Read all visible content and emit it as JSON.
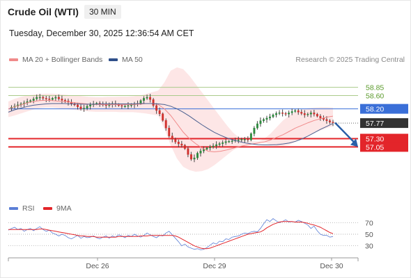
{
  "header": {
    "title": "Crude Oil (WTI)",
    "timeframe": "30 MIN",
    "datetime": "Tuesday, December 30, 2025 12:36:54 AM CET"
  },
  "legend": {
    "ma20_label": "MA 20 + Bollinger Bands",
    "ma50_label": "MA 50",
    "credit": "Research © 2025 Trading Central"
  },
  "rsi_legend": {
    "rsi_label": "RSI",
    "ma_label": "9MA"
  },
  "colors": {
    "up": "#2e8b3e",
    "down": "#d0312d",
    "ma20": "#f08a8a",
    "ma50": "#4a5f8f",
    "bollinger_fill": "#fde3e3",
    "resistance_line": "#aacb8a",
    "resistance_text": "#5a9a2a",
    "pivot": "#3a6fd8",
    "support": "#e3252a",
    "current": "#333333",
    "rsi": "#5b7fd6",
    "rsi_ma": "#e3252a",
    "arrow": "#2a5fa8"
  },
  "chart_data": [
    {
      "type": "candlestick",
      "x_ticks": [
        "Dec 26",
        "Dec 29",
        "Dec 30"
      ],
      "ylim": [
        55.82,
        59.22
      ],
      "levels": [
        {
          "value": 58.85,
          "label": "58.85",
          "kind": "resistance"
        },
        {
          "value": 58.6,
          "label": "58.60",
          "kind": "resistance"
        },
        {
          "value": 58.2,
          "label": "58.20",
          "kind": "pivot"
        },
        {
          "value": 57.77,
          "label": "57.77",
          "kind": "current"
        },
        {
          "value": 57.3,
          "label": "57.30",
          "kind": "support"
        },
        {
          "value": 57.05,
          "label": "57.05",
          "kind": "support"
        }
      ],
      "projection": {
        "from": 57.78,
        "to": 57.05
      },
      "price_path": [
        58.22,
        58.25,
        58.28,
        58.32,
        58.35,
        58.38,
        58.42,
        58.45,
        58.5,
        58.55,
        58.55,
        58.52,
        58.5,
        58.48,
        58.52,
        58.55,
        58.5,
        58.46,
        58.44,
        58.4,
        58.36,
        58.32,
        58.26,
        58.2,
        58.22,
        58.28,
        58.32,
        58.35,
        58.37,
        58.34,
        58.32,
        58.3,
        58.34,
        58.36,
        58.33,
        58.3,
        58.28,
        58.28,
        58.3,
        58.32,
        58.34,
        58.36,
        58.45,
        58.52,
        58.55,
        58.48,
        58.3,
        58.15,
        58.05,
        57.85,
        57.62,
        57.38,
        57.28,
        57.2,
        57.14,
        57.1,
        57.0,
        56.82,
        56.68,
        56.72,
        56.86,
        56.93,
        56.98,
        57.02,
        57.05,
        57.08,
        57.12,
        57.15,
        57.18,
        57.21,
        57.22,
        57.23,
        57.25,
        57.26,
        57.28,
        57.28,
        57.26,
        57.45,
        57.62,
        57.75,
        57.84,
        57.88,
        57.92,
        57.96,
        58.02,
        58.06,
        58.08,
        58.06,
        58.04,
        58.08,
        58.12,
        58.15,
        58.1,
        58.06,
        58.02,
        58.04,
        58.08,
        58.04,
        57.98,
        57.92,
        57.88,
        57.84,
        57.8,
        57.78
      ],
      "ma20": [
        58.2,
        58.26,
        58.32,
        58.38,
        58.42,
        58.45,
        58.46,
        58.45,
        58.43,
        58.42,
        58.4,
        58.38,
        58.36,
        58.34,
        58.33,
        58.33,
        58.33,
        58.33,
        58.33,
        58.33,
        58.33,
        58.34,
        58.36,
        58.36,
        58.33,
        58.2,
        58.0,
        57.75,
        57.5,
        57.3,
        57.15,
        57.02,
        56.92,
        56.9,
        56.92,
        56.96,
        57.01,
        57.06,
        57.1,
        57.14,
        57.17,
        57.2,
        57.26,
        57.34,
        57.42,
        57.52,
        57.62,
        57.7,
        57.78,
        57.85,
        57.9,
        57.95,
        57.98
      ],
      "ma50": [
        58.1,
        58.17,
        58.22,
        58.27,
        58.31,
        58.33,
        58.35,
        58.36,
        58.36,
        58.36,
        58.35,
        58.35,
        58.34,
        58.34,
        58.34,
        58.35,
        58.35,
        58.35,
        58.35,
        58.35,
        58.35,
        58.36,
        58.36,
        58.36,
        58.35,
        58.33,
        58.28,
        58.2,
        58.1,
        57.98,
        57.85,
        57.72,
        57.6,
        57.49,
        57.4,
        57.32,
        57.26,
        57.21,
        57.17,
        57.14,
        57.12,
        57.11,
        57.11,
        57.12,
        57.14,
        57.17,
        57.22,
        57.29,
        57.38,
        57.48,
        57.58,
        57.67,
        57.76
      ],
      "bollinger_upper": [
        58.42,
        58.5,
        58.56,
        58.6,
        58.63,
        58.65,
        58.66,
        58.66,
        58.65,
        58.63,
        58.61,
        58.6,
        58.58,
        58.56,
        58.55,
        58.55,
        58.56,
        58.56,
        58.57,
        58.57,
        58.58,
        58.6,
        58.65,
        58.7,
        58.75,
        59.0,
        59.35,
        59.45,
        59.4,
        59.2,
        58.95,
        58.7,
        58.45,
        58.2,
        57.95,
        57.7,
        57.48,
        57.33,
        57.25,
        57.22,
        57.22,
        57.3,
        57.45,
        57.65,
        57.85,
        58.0,
        58.1,
        58.17,
        58.22,
        58.24,
        58.25,
        58.25,
        58.24
      ],
      "bollinger_lower": [
        57.95,
        58.0,
        58.06,
        58.12,
        58.18,
        58.22,
        58.24,
        58.24,
        58.22,
        58.2,
        58.18,
        58.16,
        58.14,
        58.12,
        58.11,
        58.11,
        58.11,
        58.11,
        58.1,
        58.1,
        58.1,
        58.08,
        58.06,
        58.03,
        58.0,
        57.6,
        57.1,
        56.7,
        56.45,
        56.35,
        56.3,
        56.32,
        56.38,
        56.5,
        56.65,
        56.8,
        56.95,
        57.05,
        57.12,
        57.16,
        57.18,
        57.18,
        57.12,
        57.08,
        57.08,
        57.12,
        57.2,
        57.3,
        57.4,
        57.48,
        57.55,
        57.62,
        57.68
      ]
    },
    {
      "type": "line",
      "ylim": [
        20,
        80
      ],
      "y_ticks": [
        70,
        50,
        30
      ],
      "y_tick_labels": [
        "70",
        "50",
        "30"
      ],
      "series": [
        {
          "name": "RSI",
          "values": [
            57,
            60,
            62,
            58,
            60,
            55,
            58,
            60,
            56,
            60,
            63,
            58,
            55,
            57,
            52,
            50,
            47,
            50,
            48,
            44,
            42,
            45,
            48,
            43,
            46,
            44,
            45,
            47,
            44,
            42,
            45,
            47,
            43,
            47,
            45,
            49,
            47,
            44,
            48,
            46,
            50,
            47,
            45,
            48,
            52,
            49,
            46,
            44,
            48,
            47,
            52,
            55,
            49,
            43,
            37,
            30,
            33,
            28,
            26,
            24,
            25,
            23,
            24,
            27,
            31,
            35,
            33,
            38,
            37,
            42,
            41,
            45,
            46,
            47,
            50,
            52,
            51,
            54,
            55,
            54,
            60,
            68,
            75,
            72,
            77,
            73,
            70,
            72,
            75,
            71,
            72,
            71,
            74,
            72,
            69,
            66,
            60,
            64,
            56,
            50,
            48,
            48,
            45,
            46
          ]
        },
        {
          "name": "9MA",
          "values": [
            58,
            58,
            58,
            58,
            58,
            58,
            58,
            58,
            58,
            58,
            59,
            59,
            58,
            57,
            56,
            55,
            54,
            53,
            52,
            51,
            50,
            49,
            48,
            47,
            47,
            46,
            46,
            46,
            45,
            45,
            45,
            45,
            45,
            45,
            45,
            46,
            46,
            46,
            46,
            46,
            46,
            46,
            47,
            47,
            47,
            48,
            48,
            48,
            48,
            48,
            48,
            48,
            48,
            47,
            45,
            42,
            39,
            36,
            33,
            30,
            28,
            26,
            25,
            25,
            26,
            28,
            30,
            32,
            34,
            36,
            38,
            40,
            42,
            44,
            46,
            48,
            50,
            51,
            52,
            53,
            54,
            57,
            61,
            64,
            67,
            69,
            71,
            72,
            72,
            72,
            72,
            71,
            71,
            71,
            70,
            69,
            67,
            66,
            64,
            62,
            59,
            56,
            53,
            51
          ]
        }
      ]
    }
  ]
}
